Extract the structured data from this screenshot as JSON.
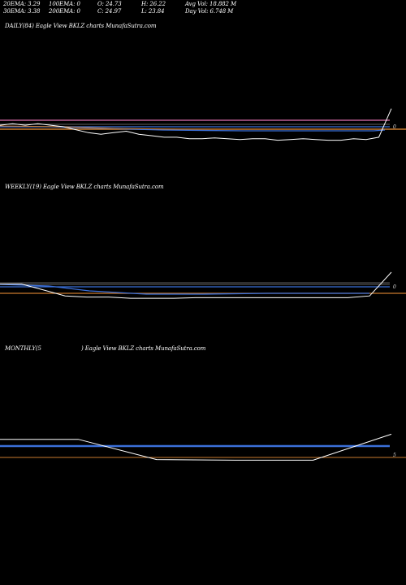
{
  "stats": {
    "ema20": "20EMA: 3.29",
    "ema30": "30EMA: 3.38",
    "ema100": "100EMA: 0",
    "ema200": "200EMA: 0",
    "open": "O: 24.73",
    "close": "C: 24.97",
    "high": "H: 26.22",
    "low": "L: 23.84",
    "avg_vol": "Avg Vol: 18.882  M",
    "day_vol": "Day Vol: 6.748 M"
  },
  "panels": {
    "daily": {
      "label": "DAILY(84) Eagle   View  BKLZ charts MunafaSutra.com",
      "right_value": "0"
    },
    "weekly": {
      "label": "WEEKLY(19) Eagle   View  BKLZ charts MunafaSutra.com",
      "right_value": "0"
    },
    "monthly": {
      "label_a": "MONTHLY(5",
      "label_b": ") Eagle   View  BKLZ charts MunafaSutra.com",
      "right_value": "5"
    }
  },
  "colors": {
    "price": "#ffffff",
    "ema_blue": "#3b6fd8",
    "ema_pink": "#e06fb0",
    "ema_orange": "#c97a2e",
    "grid_grey": "#808080"
  },
  "chart_data": [
    {
      "type": "line",
      "title": "DAILY(84) Eagle   View  BKLZ charts MunafaSutra.com",
      "series": [
        {
          "values": [
            3.9,
            4.0,
            3.9,
            4.0,
            3.9,
            3.8,
            3.6,
            3.4,
            3.3,
            3.4,
            3.5,
            3.3,
            3.2,
            3.1,
            3.1,
            3.0,
            3.0,
            3.05,
            3.0,
            2.95,
            3.0,
            3.0,
            2.9,
            2.95,
            3.0,
            2.95,
            2.9,
            2.9,
            3.0,
            2.95,
            3.1,
            5.0
          ]
        }
      ],
      "reference_levels": [
        3.29,
        3.38,
        0,
        0
      ]
    },
    {
      "type": "line",
      "title": "WEEKLY(19) Eagle   View  BKLZ charts MunafaSutra.com",
      "series": [
        {
          "values": [
            4.0,
            4.0,
            3.5,
            3.0,
            2.9,
            2.9,
            2.8,
            2.8,
            2.8,
            2.85,
            2.85,
            2.85,
            2.85,
            2.85,
            2.85,
            2.85,
            2.85,
            3.0,
            5.0
          ]
        }
      ]
    },
    {
      "type": "line",
      "title": "MONTHLY(5) Eagle   View  BKLZ charts MunafaSutra.com",
      "series": [
        {
          "values": [
            3.8,
            3.8,
            1.0,
            0.9,
            0.9,
            4.5
          ]
        }
      ]
    }
  ]
}
